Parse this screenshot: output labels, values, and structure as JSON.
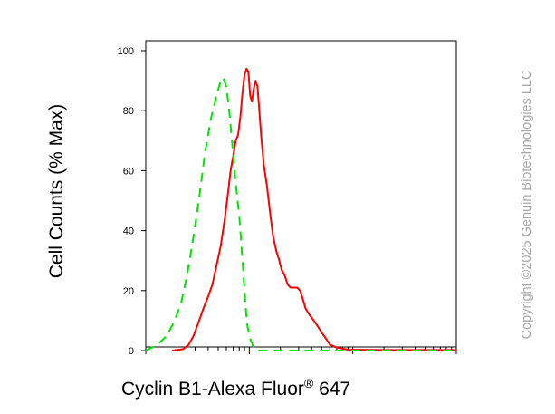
{
  "chart_data": {
    "type": "line",
    "xlabel": "Cyclin B1-Alexa Fluor",
    "xlabel_superscript": "®",
    "xlabel_suffix": " 647",
    "ylabel": "Cell Counts (% Max)",
    "x_scale": "log",
    "xlim": [
      1,
      1000
    ],
    "ylim": [
      0,
      105
    ],
    "y_ticks": [
      0,
      20,
      40,
      60,
      80,
      100
    ],
    "grid": false,
    "legend": "none",
    "series": [
      {
        "color": "#ff0000",
        "style": "solid",
        "points": [
          [
            1.8,
            0
          ],
          [
            2.3,
            0.5
          ],
          [
            2.6,
            2
          ],
          [
            2.9,
            5
          ],
          [
            3.2,
            9
          ],
          [
            3.6,
            14
          ],
          [
            4.0,
            18
          ],
          [
            4.4,
            22
          ],
          [
            4.8,
            28
          ],
          [
            5.3,
            35
          ],
          [
            5.8,
            44
          ],
          [
            6.2,
            52
          ],
          [
            6.6,
            60
          ],
          [
            7.0,
            65
          ],
          [
            7.4,
            70
          ],
          [
            7.8,
            72
          ],
          [
            8.2,
            78
          ],
          [
            8.6,
            86
          ],
          [
            9.0,
            92
          ],
          [
            9.4,
            94
          ],
          [
            9.8,
            93
          ],
          [
            10.2,
            85
          ],
          [
            10.6,
            83
          ],
          [
            11.0,
            87
          ],
          [
            11.5,
            90
          ],
          [
            12.0,
            88
          ],
          [
            12.5,
            80
          ],
          [
            13.0,
            72
          ],
          [
            13.8,
            62
          ],
          [
            14.8,
            55
          ],
          [
            16.0,
            45
          ],
          [
            17.0,
            38
          ],
          [
            18.3,
            33
          ],
          [
            19.5,
            30
          ],
          [
            20.5,
            27
          ],
          [
            22,
            25
          ],
          [
            23.5,
            22
          ],
          [
            25,
            21
          ],
          [
            27,
            21
          ],
          [
            29,
            21
          ],
          [
            31,
            20
          ],
          [
            33,
            17
          ],
          [
            35,
            14
          ],
          [
            38,
            12
          ],
          [
            42,
            10
          ],
          [
            46,
            8
          ],
          [
            50,
            6
          ],
          [
            55,
            4
          ],
          [
            60,
            2
          ],
          [
            70,
            1
          ],
          [
            90,
            0.3
          ],
          [
            200,
            0.2
          ],
          [
            600,
            0.2
          ],
          [
            1000,
            0.2
          ]
        ]
      },
      {
        "color": "#00e600",
        "style": "dashed",
        "points": [
          [
            1,
            0
          ],
          [
            1.3,
            2
          ],
          [
            1.6,
            5
          ],
          [
            1.9,
            10
          ],
          [
            2.2,
            16
          ],
          [
            2.5,
            25
          ],
          [
            2.8,
            35
          ],
          [
            3.1,
            45
          ],
          [
            3.4,
            55
          ],
          [
            3.7,
            65
          ],
          [
            4.0,
            72
          ],
          [
            4.3,
            78
          ],
          [
            4.6,
            82
          ],
          [
            5.0,
            87
          ],
          [
            5.3,
            90
          ],
          [
            5.6,
            91
          ],
          [
            6.0,
            88
          ],
          [
            6.4,
            80
          ],
          [
            6.8,
            70
          ],
          [
            7.2,
            60
          ],
          [
            7.6,
            52
          ],
          [
            8.0,
            45
          ],
          [
            8.4,
            35
          ],
          [
            8.8,
            25
          ],
          [
            9.2,
            15
          ],
          [
            9.6,
            8
          ],
          [
            10.2,
            4
          ],
          [
            11,
            1
          ],
          [
            12,
            0
          ],
          [
            18,
            0
          ],
          [
            30,
            0
          ],
          [
            60,
            0
          ],
          [
            120,
            0
          ],
          [
            300,
            0
          ],
          [
            1000,
            0
          ]
        ]
      }
    ]
  },
  "watermark": {
    "text": "Copyright ©2025 Genuin Biotechnologies LLC"
  }
}
